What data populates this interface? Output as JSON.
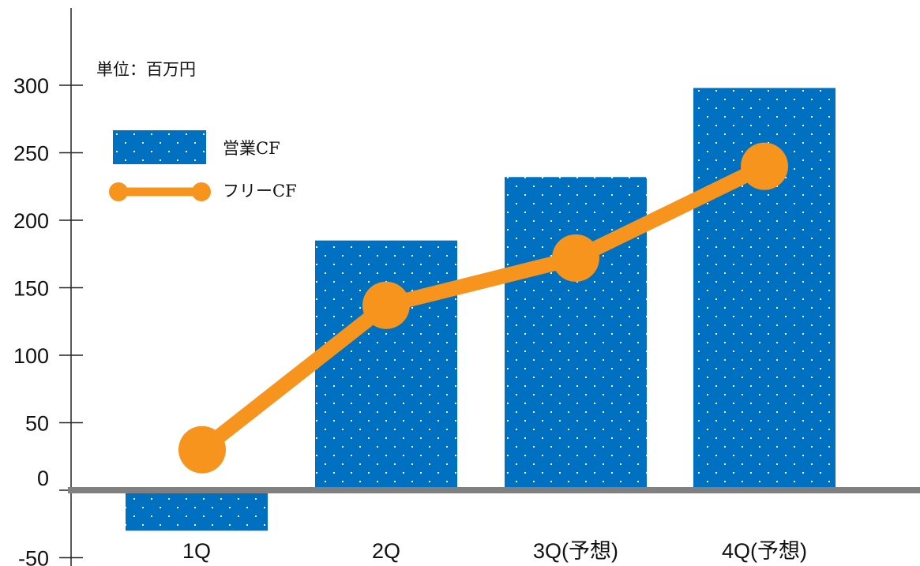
{
  "chart_data": {
    "type": "bar",
    "unit_note": "単位：百万円",
    "categories": [
      "1Q",
      "2Q",
      "3Q(予想)",
      "4Q(予想)"
    ],
    "series": [
      {
        "name": "営業CF",
        "type": "bar",
        "color": "#0070c0",
        "values": [
          -30,
          185,
          232,
          298
        ]
      },
      {
        "name": "フリーCF",
        "type": "line",
        "color": "#f7941d",
        "values": [
          30,
          137,
          172,
          240
        ]
      }
    ],
    "yticks": [
      -50,
      0,
      50,
      100,
      150,
      200,
      250,
      300
    ],
    "ylim": [
      -50,
      300
    ],
    "legend_position": "top-left",
    "grid": false
  }
}
